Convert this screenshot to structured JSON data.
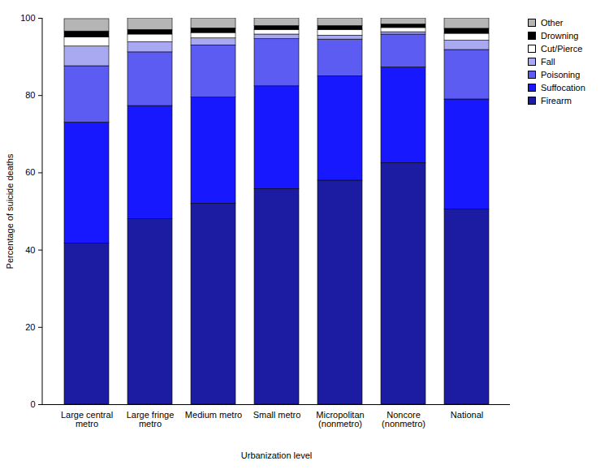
{
  "chart_data": {
    "type": "bar",
    "stacked": true,
    "x_label": "Urbanization level",
    "y_label": "Percentage of suicide deaths",
    "categories": [
      "Large central metro",
      "Large fringe metro",
      "Medium metro",
      "Small metro",
      "Micropolitan (nonmetro)",
      "Noncore (nonmetro)",
      "National"
    ],
    "series": [
      {
        "name": "Firearm",
        "color": "#1c1ca3",
        "values": [
          41.7,
          48.0,
          52.0,
          55.8,
          58.0,
          62.5,
          50.5
        ]
      },
      {
        "name": "Suffocation",
        "color": "#1818ff",
        "values": [
          31.3,
          29.3,
          27.5,
          26.6,
          27.0,
          24.8,
          28.5
        ]
      },
      {
        "name": "Poisoning",
        "color": "#5c5cf2",
        "values": [
          14.6,
          13.9,
          13.5,
          12.2,
          9.5,
          8.5,
          12.8
        ]
      },
      {
        "name": "Fall",
        "color": "#a9a9f2",
        "values": [
          5.1,
          2.6,
          1.8,
          1.2,
          1.0,
          0.6,
          2.4
        ]
      },
      {
        "name": "Cut/Pierce",
        "color": "#ffffff",
        "values": [
          2.4,
          2.0,
          1.4,
          1.2,
          1.5,
          1.1,
          1.8
        ]
      },
      {
        "name": "Drowning",
        "color": "#000000",
        "values": [
          1.5,
          1.2,
          1.2,
          1.0,
          1.0,
          0.9,
          1.3
        ]
      },
      {
        "name": "Other",
        "color": "#b5b5b5",
        "values": [
          3.2,
          3.0,
          2.6,
          2.0,
          2.0,
          1.6,
          2.7
        ]
      }
    ],
    "ylim": [
      0,
      100
    ],
    "yticks": [
      0,
      20,
      40,
      60,
      80,
      100
    ],
    "grid": false,
    "legend": "top-right"
  }
}
